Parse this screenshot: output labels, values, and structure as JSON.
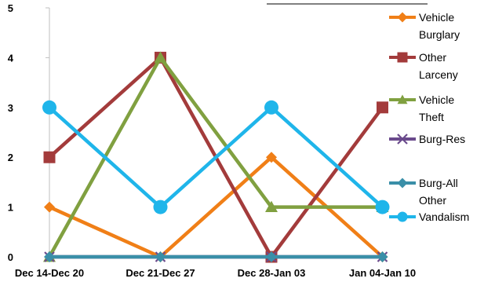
{
  "chart_data": {
    "type": "line",
    "title": "",
    "xlabel": "",
    "ylabel": "",
    "x": [
      "Dec 14-Dec 20",
      "Dec 21-Dec 27",
      "Dec 28-Jan 03",
      "Jan 04-Jan 10"
    ],
    "yticks": [
      "0",
      "1",
      "2",
      "3",
      "4",
      "5"
    ],
    "ylim": [
      0,
      5
    ],
    "grid": false,
    "legend_position": "right",
    "series": [
      {
        "name": "Vehicle Burglary",
        "legend_lines": [
          "Vehicle",
          "Burglary"
        ],
        "values": [
          1,
          0,
          2,
          0
        ],
        "color": "#F07F17",
        "marker": "diamond"
      },
      {
        "name": "Other Larceny",
        "legend_lines": [
          "Other",
          "Larceny"
        ],
        "values": [
          2,
          4,
          0,
          3
        ],
        "color": "#A33B3B",
        "marker": "square"
      },
      {
        "name": "Vehicle Theft",
        "legend_lines": [
          "Vehicle",
          "Theft"
        ],
        "values": [
          0,
          4,
          1,
          1
        ],
        "color": "#80A040",
        "marker": "triangle"
      },
      {
        "name": "Burg-Res",
        "legend_lines": [
          "Burg-Res"
        ],
        "values": [
          0,
          0,
          0,
          0
        ],
        "color": "#6A4A8C",
        "marker": "x"
      },
      {
        "name": "Burg-All Other",
        "legend_lines": [
          "Burg-All",
          "Other"
        ],
        "values": [
          0,
          0,
          0,
          0
        ],
        "color": "#3A8FA8",
        "marker": "diamond"
      },
      {
        "name": "Vandalism",
        "legend_lines": [
          "Vandalism"
        ],
        "values": [
          3,
          1,
          3,
          1
        ],
        "color": "#1FB5EA",
        "marker": "circle"
      }
    ]
  }
}
